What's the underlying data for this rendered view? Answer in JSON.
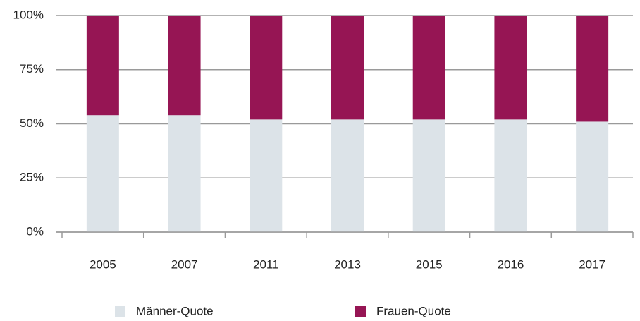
{
  "chart_data": {
    "type": "stacked_bar",
    "categories": [
      "2005",
      "2007",
      "2011",
      "2013",
      "2015",
      "2016",
      "2017"
    ],
    "series": [
      {
        "name": "Männer-Quote",
        "color": "#dce3e8",
        "values": [
          54,
          54,
          52,
          52,
          52,
          52,
          51
        ]
      },
      {
        "name": "Frauen-Quote",
        "color": "#961554",
        "values": [
          46,
          46,
          48,
          48,
          48,
          48,
          49
        ]
      }
    ],
    "ylim": [
      0,
      100
    ],
    "yticks": [
      {
        "value": 0,
        "label": "0%"
      },
      {
        "value": 25,
        "label": "25%"
      },
      {
        "value": 50,
        "label": "50%"
      },
      {
        "value": 75,
        "label": "75%"
      },
      {
        "value": 100,
        "label": "100%"
      }
    ],
    "grid": true
  }
}
